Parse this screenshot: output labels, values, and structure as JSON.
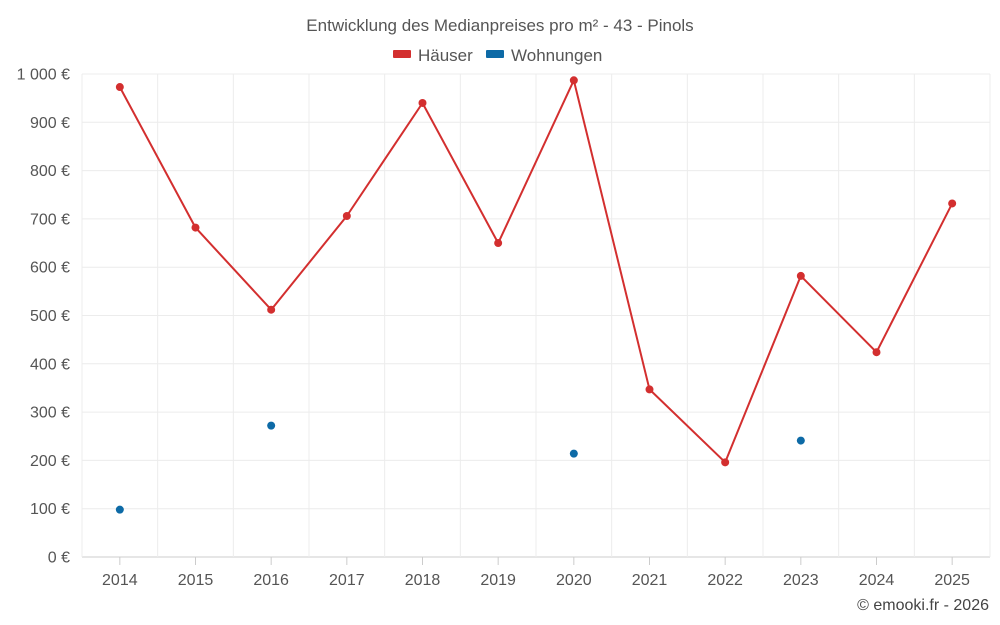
{
  "chart_data": {
    "type": "line",
    "title": "Entwicklung des Medianpreises pro m² - 43 - Pinols",
    "categories": [
      "2014",
      "2015",
      "2016",
      "2017",
      "2018",
      "2019",
      "2020",
      "2021",
      "2022",
      "2023",
      "2024",
      "2025"
    ],
    "ylim": [
      0,
      1000
    ],
    "yticks": [
      0,
      100,
      200,
      300,
      400,
      500,
      600,
      700,
      800,
      900,
      1000
    ],
    "ytick_labels": [
      "0 €",
      "100 €",
      "200 €",
      "300 €",
      "400 €",
      "500 €",
      "600 €",
      "700 €",
      "800 €",
      "900 €",
      "1 000 €"
    ],
    "grid": true,
    "legend_position": "top-center",
    "series": [
      {
        "name": "Häuser",
        "color": "#d32f2f",
        "style": "line-markers",
        "values": [
          973,
          682,
          512,
          706,
          940,
          650,
          987,
          347,
          196,
          582,
          424,
          732
        ]
      },
      {
        "name": "Wohnungen",
        "color": "#0d6aa6",
        "style": "markers",
        "values": [
          98,
          null,
          272,
          null,
          null,
          null,
          214,
          null,
          null,
          241,
          null,
          null
        ]
      }
    ]
  },
  "credit": "© emooki.fr - 2026"
}
